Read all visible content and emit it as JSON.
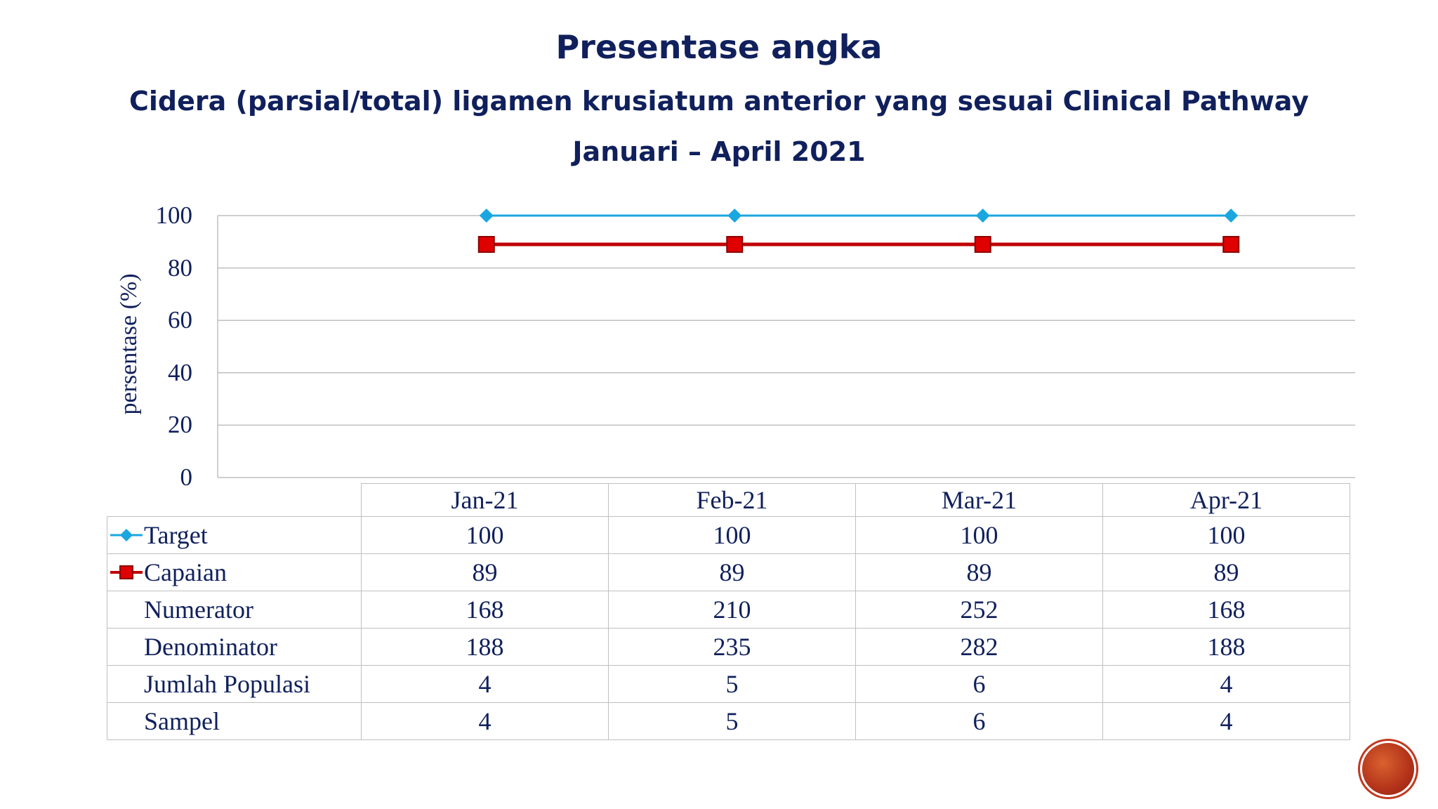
{
  "header": {
    "title": "Presentase angka",
    "subtitle": "Cidera (parsial/total) ligamen krusiatum anterior yang sesuai Clinical Pathway",
    "period": "Januari – April 2021"
  },
  "chart_data": {
    "type": "line",
    "categories": [
      "Jan-21",
      "Feb-21",
      "Mar-21",
      "Apr-21"
    ],
    "series": [
      {
        "name": "Target",
        "values": [
          100,
          100,
          100,
          100
        ],
        "color": "#1aa7e0",
        "marker": "diamond"
      },
      {
        "name": "Capaian",
        "values": [
          89,
          89,
          89,
          89
        ],
        "color": "#c00000",
        "marker": "square"
      }
    ],
    "ylabel": "persentase (%)",
    "ylim": [
      0,
      100
    ],
    "yticks": [
      "100",
      "80",
      "60",
      "40",
      "20",
      "0"
    ],
    "grid": true,
    "legend": "data-table"
  },
  "table": {
    "rows": [
      {
        "label": "Target",
        "values": [
          "100",
          "100",
          "100",
          "100"
        ],
        "key": "diamond"
      },
      {
        "label": "Capaian",
        "values": [
          "89",
          "89",
          "89",
          "89"
        ],
        "key": "square"
      },
      {
        "label": "Numerator",
        "values": [
          "168",
          "210",
          "252",
          "168"
        ]
      },
      {
        "label": "Denominator",
        "values": [
          "188",
          "235",
          "282",
          "188"
        ]
      },
      {
        "label": "Jumlah Populasi",
        "values": [
          "4",
          "5",
          "6",
          "4"
        ]
      },
      {
        "label": "Sampel",
        "values": [
          "4",
          "5",
          "6",
          "4"
        ]
      }
    ]
  },
  "logo_icon": "red-circle-logo-icon"
}
